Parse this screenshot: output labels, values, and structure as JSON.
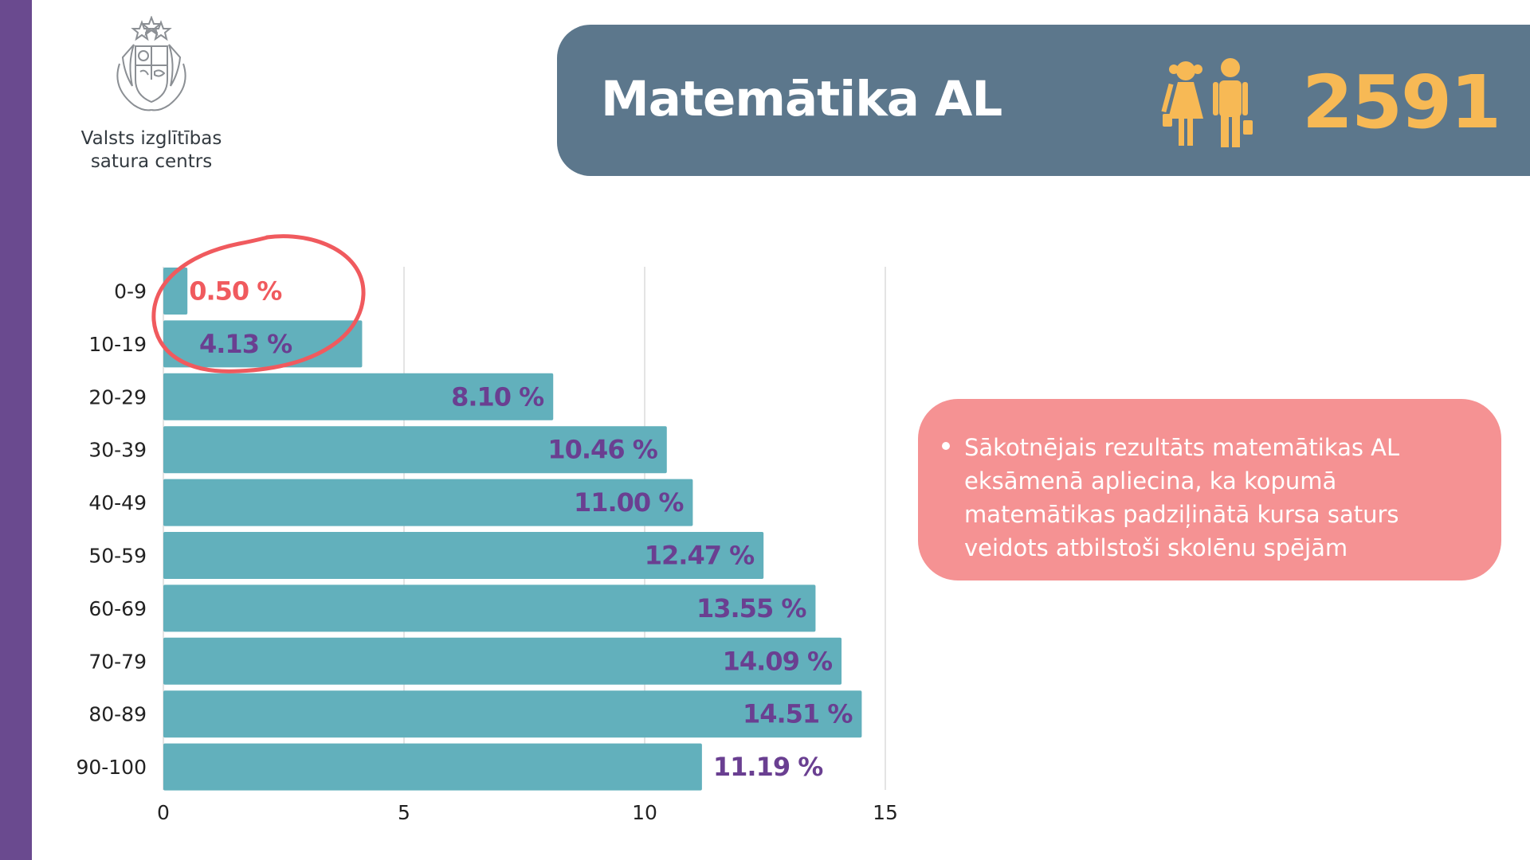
{
  "org": {
    "name_line1": "Valsts izglītības",
    "name_line2": "satura centrs"
  },
  "header": {
    "title": "Matemātika AL",
    "count": "2591",
    "icon": "students-icon"
  },
  "note": {
    "text": "Sākotnējais rezultāts matemātikas AL eksāmenā apliecina, ka kopumā matemātikas padziļinātā kursa saturs veidots atbilstoši skolēnu spējām"
  },
  "colors": {
    "bar": "#62b0bc",
    "label": "#6a3f91",
    "highlight": "#f05a5e",
    "banner": "#5c778c",
    "accent": "#f7b955",
    "note_bg": "#f59293",
    "stripe": "#6a4a8f"
  },
  "chart_data": {
    "type": "bar",
    "orientation": "horizontal",
    "categories": [
      "0-9",
      "10-19",
      "20-29",
      "30-39",
      "40-49",
      "50-59",
      "60-69",
      "70-79",
      "80-89",
      "90-100"
    ],
    "values": [
      0.5,
      4.13,
      8.1,
      10.46,
      11.0,
      12.47,
      13.55,
      14.09,
      14.51,
      11.19
    ],
    "data_labels": [
      "0.50 %",
      "4.13 %",
      "8.10 %",
      "10.46 %",
      "11.00 %",
      "12.47 %",
      "13.55 %",
      "14.09 %",
      "14.51 %",
      "11.19 %"
    ],
    "xticks": [
      0,
      5,
      10,
      15
    ],
    "xlim": [
      0,
      15
    ],
    "grid": "vertical",
    "highlighted_categories": [
      "0-9",
      "10-19"
    ]
  }
}
